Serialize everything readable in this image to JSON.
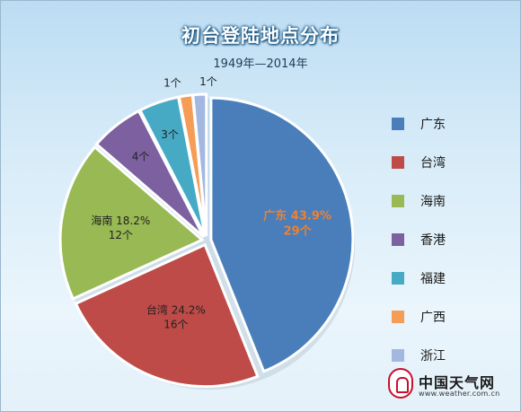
{
  "chart_data": {
    "type": "pie",
    "title": "初台登陆地点分布",
    "subtitle": "1949年—2014年",
    "series": [
      {
        "name": "广东",
        "count": 29,
        "percent": 43.9,
        "pct_label": "43.9%",
        "count_label": "29个",
        "color": "#4a7ebb"
      },
      {
        "name": "台湾",
        "count": 16,
        "percent": 24.2,
        "pct_label": "24.2%",
        "count_label": "16个",
        "color": "#be4b48"
      },
      {
        "name": "海南",
        "count": 12,
        "percent": 18.2,
        "pct_label": "18.2%",
        "count_label": "12个",
        "color": "#98b954"
      },
      {
        "name": "香港",
        "count": 4,
        "percent": 6.1,
        "count_label": "4个",
        "color": "#7d60a0"
      },
      {
        "name": "福建",
        "count": 3,
        "percent": 4.5,
        "count_label": "3个",
        "color": "#46aac5"
      },
      {
        "name": "广西",
        "count": 1,
        "percent": 1.5,
        "count_label": "1个",
        "color": "#f59d56"
      },
      {
        "name": "浙江",
        "count": 1,
        "percent": 1.5,
        "count_label": "1个",
        "color": "#a2b8e1"
      }
    ],
    "legend_position": "right"
  },
  "logo": {
    "name": "中国天气网",
    "url": "www.weather.com.cn"
  }
}
